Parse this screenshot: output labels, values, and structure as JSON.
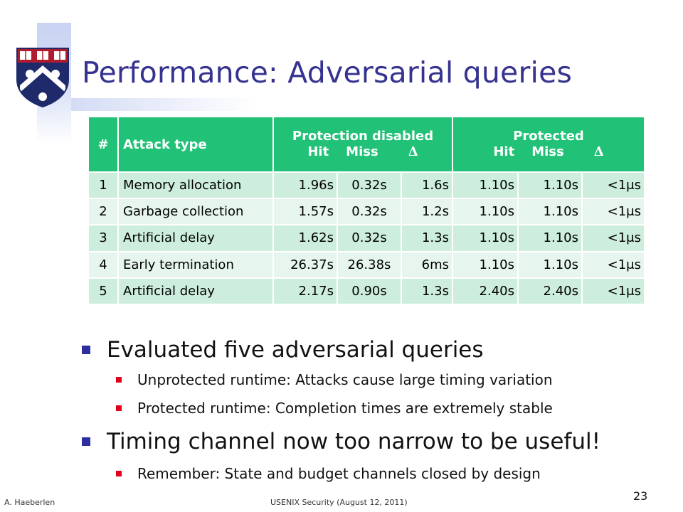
{
  "slide": {
    "title": "Performance: Adversarial queries"
  },
  "table": {
    "headers": {
      "num": "#",
      "type": "Attack type",
      "group1": "Protection disabled",
      "group2": "Protected",
      "hit": "Hit",
      "miss": "Miss",
      "delta": "Δ"
    },
    "rows": [
      {
        "num": "1",
        "type": "Memory allocation",
        "d_hit": "1.96s",
        "d_miss": "0.32s",
        "d_delta": "1.6s",
        "p_hit": "1.10s",
        "p_miss": "1.10s",
        "p_delta": "<1μs"
      },
      {
        "num": "2",
        "type": "Garbage collection",
        "d_hit": "1.57s",
        "d_miss": "0.32s",
        "d_delta": "1.2s",
        "p_hit": "1.10s",
        "p_miss": "1.10s",
        "p_delta": "<1μs"
      },
      {
        "num": "3",
        "type": "Artificial delay",
        "d_hit": "1.62s",
        "d_miss": "0.32s",
        "d_delta": "1.3s",
        "p_hit": "1.10s",
        "p_miss": "1.10s",
        "p_delta": "<1μs"
      },
      {
        "num": "4",
        "type": "Early termination",
        "d_hit": "26.37s",
        "d_miss": "26.38s",
        "d_delta": "6ms",
        "p_hit": "1.10s",
        "p_miss": "1.10s",
        "p_delta": "<1μs"
      },
      {
        "num": "5",
        "type": "Artificial delay",
        "d_hit": "2.17s",
        "d_miss": "0.90s",
        "d_delta": "1.3s",
        "p_hit": "2.40s",
        "p_miss": "2.40s",
        "p_delta": "<1μs"
      }
    ]
  },
  "bullets": {
    "b1": "Evaluated five adversarial queries",
    "b1_sub1": "Unprotected runtime: Attacks cause large timing variation",
    "b1_sub2": "Protected runtime: Completion times are extremely stable",
    "b2": "Timing channel now too narrow to be useful!",
    "b2_sub1": "Remember: State and budget channels closed by design"
  },
  "footer": {
    "author": "A. Haeberlen",
    "venue": "USENIX Security (August 12, 2011)",
    "page": "23"
  },
  "colors": {
    "title": "#35338f",
    "header_bg": "#21c277",
    "row_dark": "#cdeedd",
    "row_light": "#e6f6ee",
    "bullet_main": "#2e2f9e",
    "bullet_sub": "#e0001b",
    "logo_blue": "#1f2a6b",
    "logo_red": "#b01c2e"
  },
  "icons": {
    "logo": "university-shield-icon",
    "bullet_main": "blue-square-bullet-icon",
    "bullet_sub": "red-square-bullet-icon"
  }
}
